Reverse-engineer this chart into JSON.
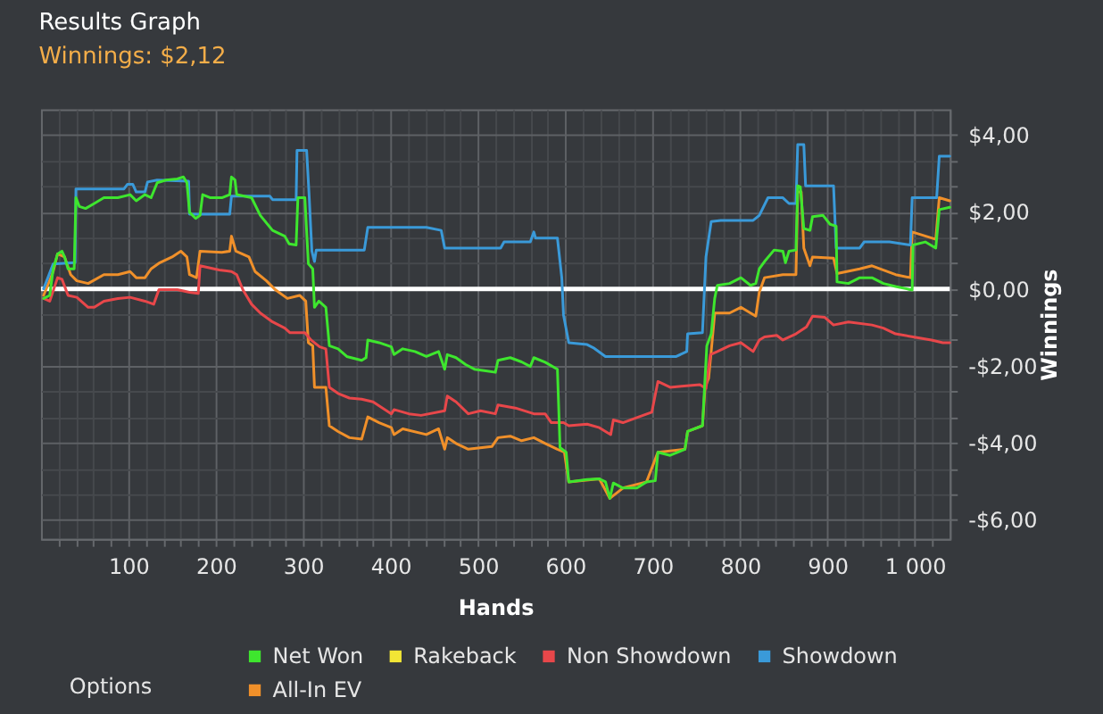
{
  "chart_data": {
    "type": "line",
    "title": "Results Graph",
    "subtitle": "Winnings: $2,12",
    "xlabel": "Hands",
    "ylabel": "Winnings",
    "xlim": [
      0,
      1040
    ],
    "ylim": [
      -6.5,
      4.67
    ],
    "xticks": [
      {
        "value": 20,
        "label": null
      },
      {
        "value": 40,
        "label": null
      },
      {
        "value": 60,
        "label": null
      },
      {
        "value": 80,
        "label": null
      },
      100,
      {
        "value": 120,
        "label": null
      },
      {
        "value": 140,
        "label": null
      },
      {
        "value": 160,
        "label": null
      },
      {
        "value": 180,
        "label": null
      },
      200,
      {
        "value": 220,
        "label": null
      },
      {
        "value": 240,
        "label": null
      },
      {
        "value": 260,
        "label": null
      },
      {
        "value": 280,
        "label": null
      },
      300,
      {
        "value": 320,
        "label": null
      },
      {
        "value": 340,
        "label": null
      },
      {
        "value": 360,
        "label": null
      },
      {
        "value": 380,
        "label": null
      },
      400,
      {
        "value": 420,
        "label": null
      },
      {
        "value": 440,
        "label": null
      },
      {
        "value": 460,
        "label": null
      },
      {
        "value": 480,
        "label": null
      },
      500,
      {
        "value": 520,
        "label": null
      },
      {
        "value": 540,
        "label": null
      },
      {
        "value": 560,
        "label": null
      },
      {
        "value": 580,
        "label": null
      },
      600,
      {
        "value": 620,
        "label": null
      },
      {
        "value": 640,
        "label": null
      },
      {
        "value": 660,
        "label": null
      },
      {
        "value": 680,
        "label": null
      },
      700,
      {
        "value": 720,
        "label": null
      },
      {
        "value": 740,
        "label": null
      },
      {
        "value": 760,
        "label": null
      },
      {
        "value": 780,
        "label": null
      },
      800,
      {
        "value": 820,
        "label": null
      },
      {
        "value": 840,
        "label": null
      },
      {
        "value": 860,
        "label": null
      },
      {
        "value": 880,
        "label": null
      },
      900,
      {
        "value": 920,
        "label": null
      },
      {
        "value": 940,
        "label": null
      },
      {
        "value": 960,
        "label": null
      },
      {
        "value": 980,
        "label": null
      },
      {
        "value": 1000,
        "label": "1 000"
      },
      {
        "value": 1020,
        "label": null
      }
    ],
    "yticks": [
      {
        "value": 4,
        "label": "$4,00"
      },
      {
        "value": 3.33,
        "label": null
      },
      {
        "value": 2.67,
        "label": null
      },
      {
        "value": 2,
        "label": "$2,00"
      },
      {
        "value": 1.33,
        "label": null
      },
      {
        "value": 0.67,
        "label": null
      },
      {
        "value": 0,
        "label": "$0,00"
      },
      {
        "value": -0.67,
        "label": null
      },
      {
        "value": -1.33,
        "label": null
      },
      {
        "value": -2,
        "label": "-$2,00"
      },
      {
        "value": -2.67,
        "label": null
      },
      {
        "value": -3.33,
        "label": null
      },
      {
        "value": -4,
        "label": "-$4,00"
      },
      {
        "value": -4.67,
        "label": null
      },
      {
        "value": -5.33,
        "label": null
      },
      {
        "value": -6,
        "label": "-$6,00"
      }
    ],
    "grid": true,
    "legend": "bottom",
    "marker": "none",
    "line_style": "solid",
    "ref_lines": [
      {
        "axis": "y",
        "value": 0,
        "color": "#ffffff"
      }
    ],
    "annotations": [
      "Options"
    ],
    "series": [
      {
        "name": "Net Won",
        "color": "#3ee62e",
        "x": [
          3,
          10,
          14,
          19,
          24,
          27,
          31,
          38,
          40,
          44,
          51,
          61,
          72,
          88,
          102,
          109,
          119,
          126,
          133,
          143,
          156,
          163,
          167,
          170,
          177,
          182,
          185,
          194,
          207,
          216,
          218,
          222,
          224,
          241,
          251,
          265,
          279,
          284,
          292,
          294,
          302,
          306,
          311,
          313,
          318,
          326,
          330,
          340,
          350,
          367,
          372,
          374,
          387,
          401,
          404,
          414,
          428,
          441,
          455,
          462,
          465,
          475,
          486,
          496,
          509,
          520,
          523,
          537,
          550,
          560,
          564,
          577,
          591,
          594,
          601,
          604,
          625,
          639,
          646,
          651,
          655,
          666,
          682,
          693,
          703,
          706,
          720,
          737,
          740,
          757,
          762,
          767,
          771,
          774,
          788,
          801,
          812,
          818,
          822,
          828,
          839,
          849,
          852,
          856,
          864,
          866,
          869,
          873,
          880,
          883,
          895,
          903,
          910,
          911,
          924,
          937,
          951,
          964,
          978,
          997,
          998,
          1012,
          1024,
          1028,
          1040
        ],
        "values": [
          -0.25,
          -0.17,
          0.52,
          0.91,
          0.98,
          0.83,
          0.52,
          0.52,
          2.37,
          2.14,
          2.09,
          2.22,
          2.37,
          2.37,
          2.45,
          2.29,
          2.45,
          2.37,
          2.76,
          2.83,
          2.86,
          2.91,
          2.76,
          1.99,
          1.83,
          1.91,
          2.45,
          2.37,
          2.37,
          2.45,
          2.91,
          2.83,
          2.45,
          2.37,
          1.91,
          1.52,
          1.37,
          1.17,
          1.14,
          2.37,
          2.37,
          0.65,
          0.52,
          -0.48,
          -0.32,
          -0.48,
          -1.48,
          -1.56,
          -1.76,
          -1.86,
          -1.79,
          -1.33,
          -1.4,
          -1.51,
          -1.71,
          -1.56,
          -1.63,
          -1.76,
          -1.63,
          -2.09,
          -1.71,
          -1.79,
          -1.97,
          -2.09,
          -2.13,
          -2.17,
          -1.86,
          -1.79,
          -1.9,
          -2.02,
          -1.79,
          -1.91,
          -2.09,
          -4.13,
          -4.25,
          -5.02,
          -4.96,
          -4.94,
          -5.02,
          -5.45,
          -5.05,
          -5.18,
          -5.18,
          -5.02,
          -4.99,
          -4.25,
          -4.33,
          -4.17,
          -3.71,
          -3.56,
          -1.48,
          -1.17,
          -0.25,
          0.09,
          0.14,
          0.29,
          0.09,
          0.14,
          0.52,
          0.71,
          1.01,
          0.98,
          0.68,
          0.98,
          1.01,
          2.68,
          2.65,
          1.57,
          1.52,
          1.88,
          1.91,
          1.68,
          1.63,
          0.18,
          0.14,
          0.29,
          0.29,
          0.14,
          0.06,
          -0.03,
          1.14,
          1.22,
          1.06,
          2.06,
          2.12
        ]
      },
      {
        "name": "Rakeback",
        "color": "#f2e635"
      },
      {
        "name": "Non Showdown",
        "color": "#e8474a",
        "x": [
          3,
          10,
          19,
          24,
          31,
          41,
          54,
          61,
          72,
          88,
          102,
          119,
          129,
          135,
          156,
          170,
          180,
          182,
          204,
          218,
          224,
          231,
          241,
          251,
          265,
          279,
          285,
          302,
          309,
          319,
          326,
          330,
          340,
          353,
          367,
          380,
          401,
          404,
          421,
          435,
          462,
          465,
          475,
          489,
          503,
          520,
          523,
          543,
          564,
          577,
          584,
          598,
          604,
          625,
          639,
          652,
          655,
          666,
          689,
          699,
          706,
          720,
          733,
          754,
          761,
          766,
          774,
          788,
          801,
          815,
          822,
          828,
          842,
          849,
          864,
          876,
          883,
          897,
          907,
          924,
          951,
          964,
          978,
          998,
          1019,
          1032,
          1040
        ],
        "values": [
          -0.25,
          -0.32,
          0.29,
          0.25,
          -0.17,
          -0.22,
          -0.48,
          -0.48,
          -0.32,
          -0.25,
          -0.22,
          -0.32,
          -0.4,
          -0.02,
          -0.02,
          -0.09,
          -0.12,
          0.6,
          0.49,
          0.45,
          0.37,
          -0.02,
          -0.4,
          -0.63,
          -0.86,
          -1.02,
          -1.14,
          -1.14,
          -1.33,
          -1.51,
          -1.56,
          -2.56,
          -2.72,
          -2.84,
          -2.87,
          -2.94,
          -3.25,
          -3.14,
          -3.25,
          -3.29,
          -3.17,
          -2.79,
          -2.94,
          -3.25,
          -3.17,
          -3.25,
          -3.02,
          -3.1,
          -3.25,
          -3.25,
          -3.48,
          -3.48,
          -3.56,
          -3.52,
          -3.61,
          -3.79,
          -3.41,
          -3.48,
          -3.29,
          -3.21,
          -2.41,
          -2.56,
          -2.53,
          -2.49,
          -2.59,
          -1.71,
          -1.63,
          -1.48,
          -1.4,
          -1.63,
          -1.33,
          -1.25,
          -1.21,
          -1.33,
          -1.17,
          -0.99,
          -0.71,
          -0.74,
          -0.94,
          -0.86,
          -0.94,
          -1.02,
          -1.17,
          -1.25,
          -1.33,
          -1.4,
          -1.4
        ]
      },
      {
        "name": "Showdown",
        "color": "#3a9ad9",
        "x": [
          3,
          14,
          39,
          40,
          95,
          99,
          105,
          109,
          119,
          122,
          133,
          169,
          170,
          216,
          218,
          262,
          265,
          292,
          293,
          304,
          307,
          310,
          313,
          315,
          370,
          374,
          441,
          458,
          462,
          526,
          530,
          560,
          564,
          566,
          591,
          596,
          598,
          604,
          625,
          632,
          646,
          727,
          739,
          740,
          757,
          761,
          767,
          778,
          815,
          822,
          832,
          849,
          856,
          864,
          866,
          873,
          875,
          907,
          910,
          937,
          942,
          971,
          995,
          997,
          1025,
          1028,
          1040
        ],
        "values": [
          0,
          0.65,
          0.68,
          2.6,
          2.6,
          2.72,
          2.72,
          2.52,
          2.52,
          2.78,
          2.83,
          2.8,
          1.94,
          1.94,
          2.41,
          2.41,
          2.32,
          2.32,
          3.6,
          3.6,
          2.37,
          0.98,
          0.71,
          1.01,
          1.01,
          1.6,
          1.6,
          1.52,
          1.06,
          1.06,
          1.22,
          1.22,
          1.48,
          1.32,
          1.32,
          0.29,
          -0.68,
          -1.4,
          -1.45,
          -1.53,
          -1.76,
          -1.76,
          -1.63,
          -1.17,
          -1.14,
          0.83,
          1.75,
          1.78,
          1.78,
          1.91,
          2.37,
          2.37,
          2.22,
          2.22,
          3.75,
          3.75,
          2.68,
          2.68,
          1.06,
          1.06,
          1.22,
          1.22,
          1.14,
          2.37,
          2.37,
          3.45,
          3.45
        ]
      },
      {
        "name": "All-In EV",
        "color": "#f0902a",
        "x": [
          3,
          14,
          19,
          27,
          34,
          41,
          54,
          72,
          88,
          102,
          109,
          119,
          126,
          136,
          150,
          160,
          167,
          170,
          178,
          182,
          207,
          216,
          218,
          223,
          238,
          245,
          258,
          268,
          282,
          296,
          303,
          306,
          311,
          313,
          326,
          330,
          340,
          353,
          367,
          374,
          387,
          401,
          404,
          414,
          441,
          455,
          462,
          465,
          475,
          489,
          516,
          523,
          537,
          550,
          564,
          577,
          591,
          599,
          604,
          639,
          651,
          666,
          693,
          706,
          737,
          740,
          757,
          760,
          764,
          767,
          771,
          788,
          801,
          812,
          818,
          822,
          828,
          849,
          864,
          866,
          870,
          873,
          880,
          883,
          907,
          911,
          937,
          951,
          978,
          995,
          997,
          1024,
          1028,
          1040
        ],
        "values": [
          -0.17,
          0.45,
          0.91,
          0.83,
          0.37,
          0.21,
          0.14,
          0.37,
          0.37,
          0.45,
          0.29,
          0.29,
          0.52,
          0.68,
          0.83,
          0.98,
          0.83,
          0.37,
          0.29,
          0.98,
          0.95,
          0.98,
          1.37,
          0.98,
          0.83,
          0.45,
          0.21,
          -0.02,
          -0.25,
          -0.17,
          -0.32,
          -1.4,
          -1.48,
          -2.56,
          -2.56,
          -3.56,
          -3.71,
          -3.87,
          -3.91,
          -3.33,
          -3.48,
          -3.61,
          -3.79,
          -3.64,
          -3.79,
          -3.64,
          -4.17,
          -3.87,
          -4.02,
          -4.17,
          -4.1,
          -3.87,
          -3.83,
          -3.95,
          -3.87,
          -4.02,
          -4.17,
          -4.25,
          -5.02,
          -4.94,
          -5.45,
          -5.18,
          -5.02,
          -4.25,
          -4.17,
          -3.71,
          -3.56,
          -2.56,
          -2.33,
          -1.63,
          -0.63,
          -0.63,
          -0.48,
          -0.63,
          -0.71,
          -0.09,
          0.29,
          0.37,
          0.37,
          2.52,
          2.52,
          1.06,
          0.6,
          0.83,
          0.8,
          0.4,
          0.52,
          0.6,
          0.37,
          0.29,
          1.48,
          1.29,
          2.37,
          2.29
        ]
      }
    ]
  }
}
